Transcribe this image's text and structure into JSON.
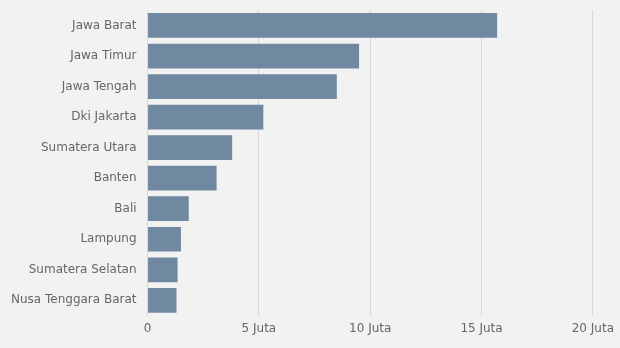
{
  "chart_data": {
    "type": "bar",
    "orientation": "horizontal",
    "categories": [
      "Nusa Tenggara Barat",
      "Sumatera Selatan",
      "Lampung",
      "Bali",
      "Banten",
      "Sumatera Utara",
      "Dki Jakarta",
      "Jawa Tengah",
      "Jawa Timur",
      "Jawa Barat"
    ],
    "values": [
      1.3,
      1.35,
      1.5,
      1.85,
      3.1,
      3.8,
      5.2,
      8.5,
      9.5,
      15.7
    ],
    "color": "#7088a0",
    "xlim": [
      0,
      20
    ],
    "xticks": [
      0,
      {
        "value": 5,
        "label": "5 Juta"
      },
      {
        "value": 10,
        "label": "10 Juta"
      },
      {
        "value": 15,
        "label": "15 Juta"
      },
      {
        "value": 20,
        "label": "20 Juta"
      }
    ],
    "grid": true
  }
}
